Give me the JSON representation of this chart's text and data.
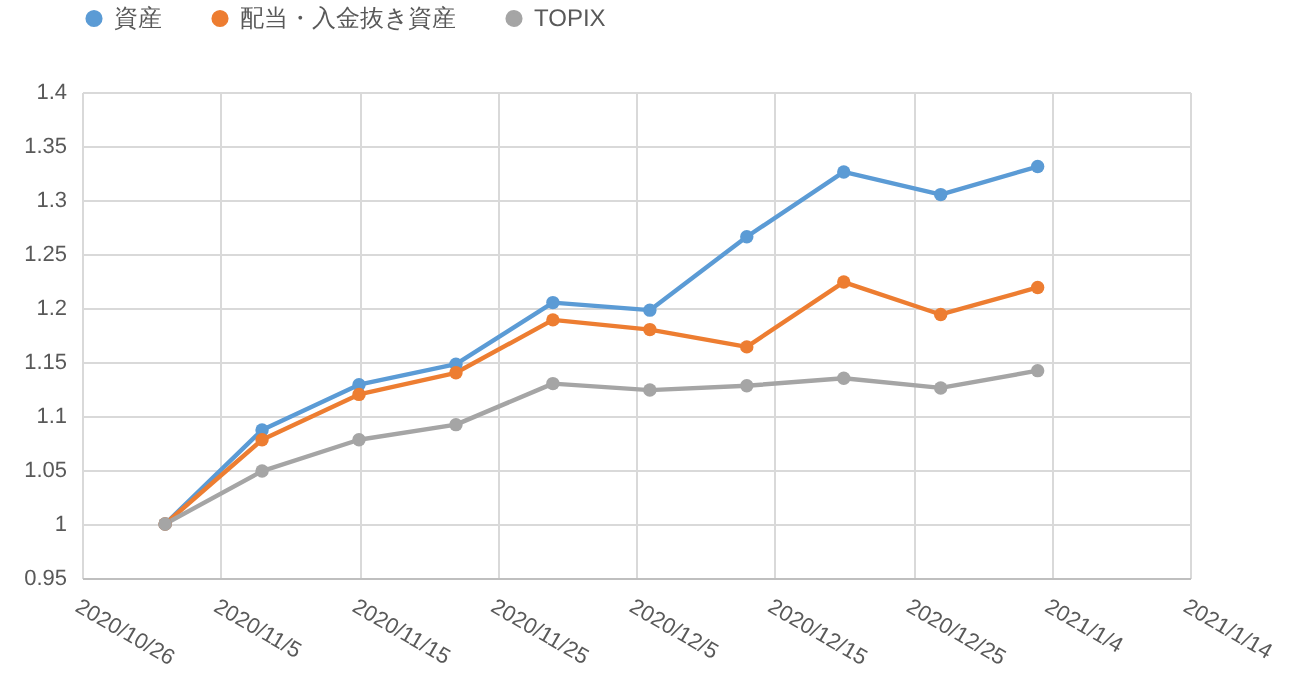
{
  "chart_data": {
    "type": "line",
    "x": [
      "2020-11-01",
      "2020-11-08",
      "2020-11-15",
      "2020-11-22",
      "2020-11-29",
      "2020-12-06",
      "2020-12-13",
      "2020-12-20",
      "2020-12-27",
      "2021-01-03"
    ],
    "series": [
      {
        "name": "資産",
        "color": "#5b9bd5",
        "values": [
          1,
          1.087,
          1.129,
          1.148,
          1.205,
          1.198,
          1.266,
          1.326,
          1.305,
          1.331
        ]
      },
      {
        "name": "配当・入金抜き資産",
        "color": "#ed7d31",
        "values": [
          1,
          1.078,
          1.12,
          1.14,
          1.189,
          1.18,
          1.164,
          1.224,
          1.194,
          1.219
        ]
      },
      {
        "name": "TOPIX",
        "color": "#a5a5a5",
        "values": [
          1,
          1.049,
          1.078,
          1.092,
          1.13,
          1.124,
          1.128,
          1.135,
          1.126,
          1.142
        ]
      }
    ],
    "xlim": [
      "2020-10-26",
      "2021-01-14"
    ],
    "xticks": [
      {
        "value": "2020-10-26",
        "label": "2020/10/26"
      },
      {
        "value": "2020-11-05",
        "label": "2020/11/5"
      },
      {
        "value": "2020-11-15",
        "label": "2020/11/15"
      },
      {
        "value": "2020-11-25",
        "label": "2020/11/25"
      },
      {
        "value": "2020-12-05",
        "label": "2020/12/5"
      },
      {
        "value": "2020-12-15",
        "label": "2020/12/15"
      },
      {
        "value": "2020-12-25",
        "label": "2020/12/25"
      },
      {
        "value": "2021-01-04",
        "label": "2021/1/4"
      },
      {
        "value": "2021-01-14",
        "label": "2021/1/14"
      }
    ],
    "ylim": [
      0.95,
      1.4
    ],
    "yticks": [
      0.95,
      1,
      1.05,
      1.1,
      1.15,
      1.2,
      1.25,
      1.3,
      1.35,
      1.4
    ],
    "grid": true,
    "legend": "top",
    "marker": "circle",
    "line_style": "solid"
  }
}
